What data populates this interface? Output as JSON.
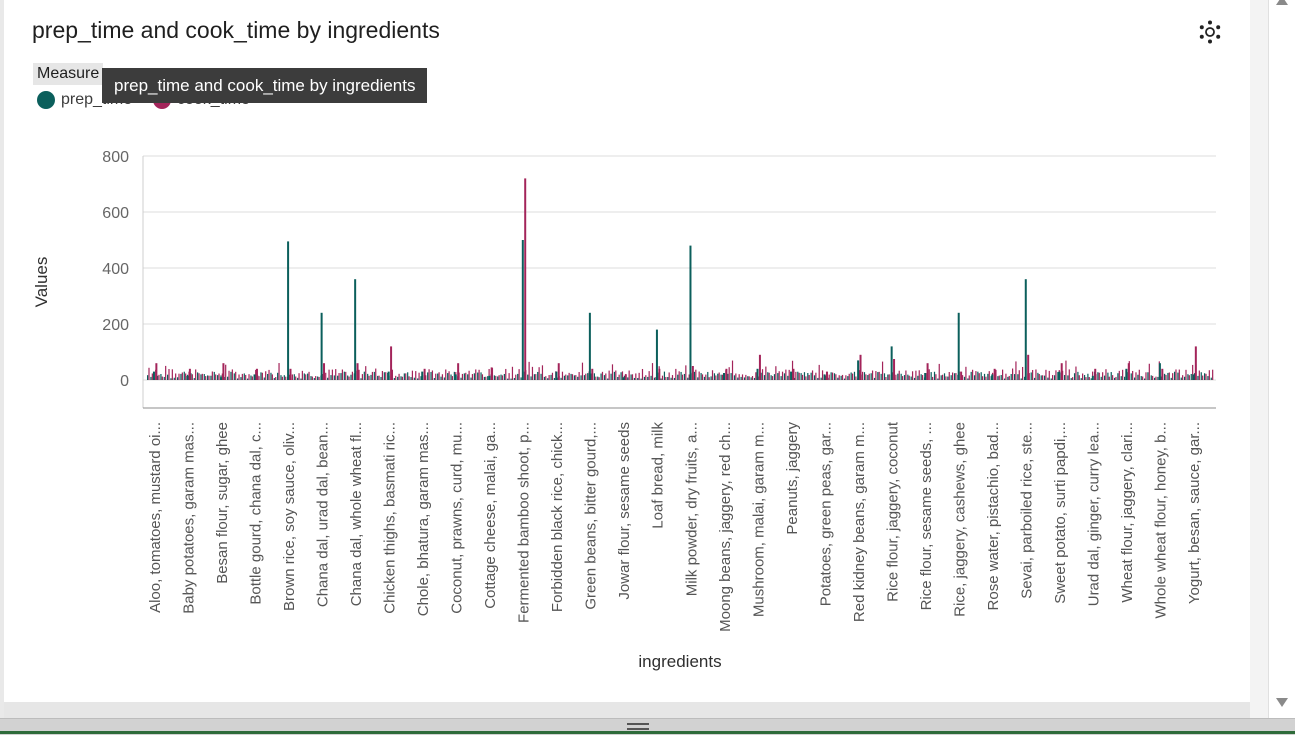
{
  "chart_title": "prep_time and cook_time by ingredients",
  "legend": {
    "title": "Measure",
    "items": [
      {
        "label": "prep_time",
        "color": "#0b5f5c"
      },
      {
        "label": "cook_time",
        "color": "#a3245a"
      }
    ]
  },
  "tooltip": "prep_time and cook_time by ingredients",
  "icons": {
    "settings": "focus-mode-icon",
    "scroll_up": "scroll-up-arrow-icon",
    "scroll_down": "scroll-down-arrow-icon",
    "resize": "resize-grip-icon"
  },
  "chart_data": {
    "type": "bar",
    "title": "prep_time and cook_time by ingredients",
    "xlabel": "ingredients",
    "ylabel": "Values",
    "ylim": [
      -100,
      800
    ],
    "yticks": [
      0,
      200,
      400,
      600,
      800
    ],
    "grid": true,
    "legend_position": "top-left",
    "categories": [
      "Aloo, tomatoes, mustard oi...",
      "Baby potatoes, garam mas...",
      "Besan flour, sugar, ghee",
      "Bottle gourd, chana dal, c...",
      "Brown rice, soy sauce, oliv...",
      "Chana dal, urad dal, bean...",
      "Chana dal, whole wheat fl...",
      "Chicken thighs, basmati ric...",
      "Chole, bhatura, garam mas...",
      "Coconut, prawns, curd, mu...",
      "Cottage cheese, malai, ga...",
      "Fermented bamboo shoot, p...",
      "Forbidden black rice, chick...",
      "Green beans, bitter gourd,...",
      "Jowar flour, sesame seeds",
      "Loaf bread, milk",
      "Milk powder, dry fruits, a...",
      "Moong beans, jaggery, red ch...",
      "Mushroom, malai, garam m...",
      "Peanuts, jaggery",
      "Potatoes, green peas, gar...",
      "Red kidney beans, garam m...",
      "Rice flour, jaggery, coconut",
      "Rice flour, sesame seeds, ...",
      "Rice, jaggery, cashews, ghee",
      "Rose water, pistachio, bad...",
      "Sevai, parboiled rice, ste...",
      "Sweet potato, surti papdi,...",
      "Urad dal, ginger, curry lea...",
      "Wheat flour, jaggery, clari...",
      "Whole wheat flour, honey, b...",
      "Yogurt, besan, sauce, gar..."
    ],
    "series": [
      {
        "name": "prep_time",
        "color": "#0b5f5c",
        "values": [
          30,
          15,
          10,
          20,
          495,
          240,
          360,
          30,
          30,
          20,
          15,
          500,
          30,
          240,
          10,
          180,
          480,
          25,
          40,
          30,
          20,
          70,
          120,
          25,
          240,
          20,
          360,
          30,
          15,
          40,
          60,
          20
        ]
      },
      {
        "name": "cook_time",
        "color": "#a3245a",
        "values": [
          60,
          40,
          60,
          40,
          40,
          60,
          60,
          120,
          40,
          60,
          45,
          720,
          60,
          40,
          20,
          40,
          50,
          40,
          90,
          40,
          30,
          90,
          75,
          60,
          30,
          40,
          90,
          60,
          40,
          60,
          40,
          120
        ]
      }
    ],
    "background_bars": {
      "count": 320,
      "typical_prep_range": [
        5,
        30
      ],
      "typical_cook_range": [
        10,
        60
      ]
    }
  }
}
